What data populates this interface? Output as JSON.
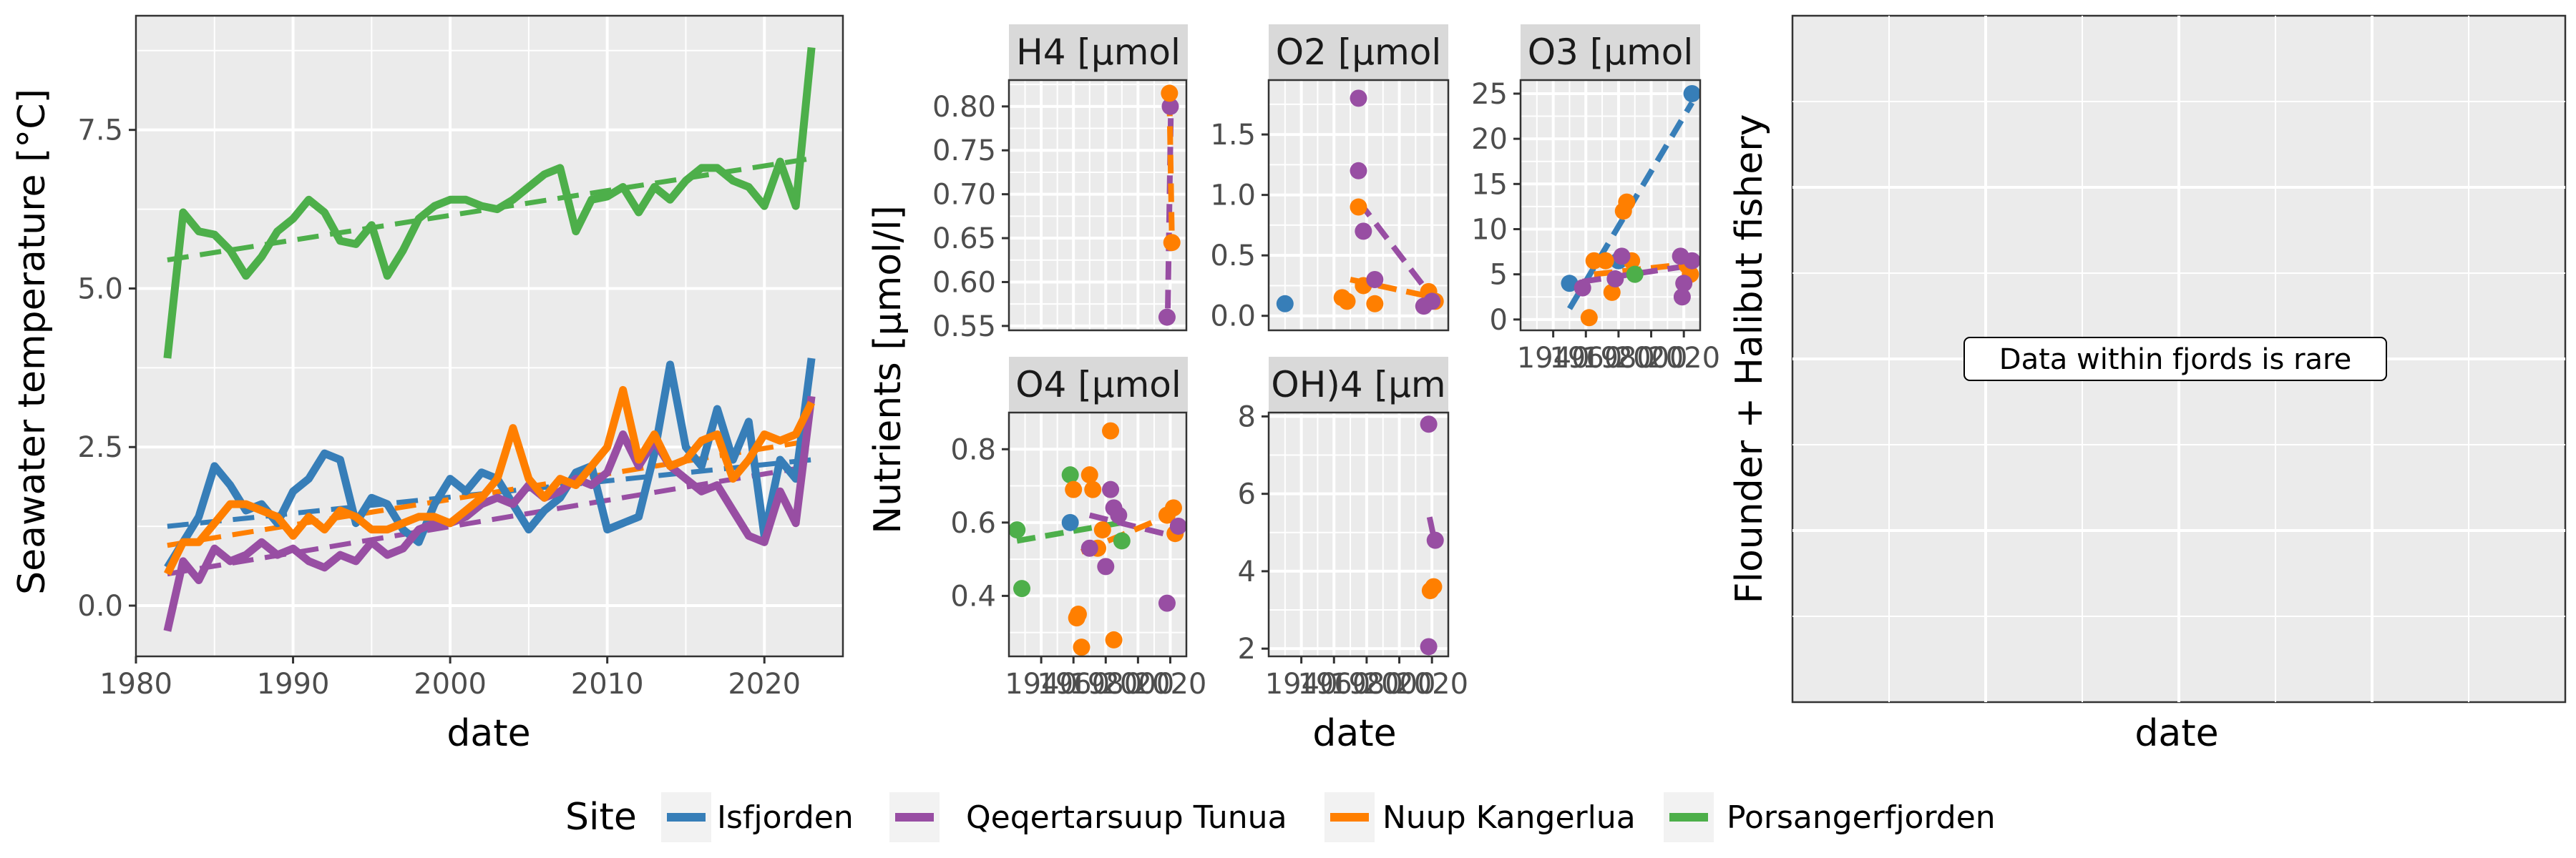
{
  "colors": {
    "Isfjorden": "#377EB8",
    "Qeqertarsuup Tunua": "#984EA3",
    "Nuup Kangerlua": "#FF7F00",
    "Porsangerfjorden": "#4DAF4A"
  },
  "legend": {
    "title": "Site",
    "items": [
      "Isfjorden",
      "Qeqertarsuup Tunua",
      "Nuup Kangerlua",
      "Porsangerfjorden"
    ]
  },
  "temp_panel": {
    "ylabel": "Seawater temperature [°C]",
    "xlabel": "date",
    "xlim": [
      1980,
      2025.3
    ],
    "ylim": [
      -0.8,
      9.3
    ],
    "xticks": [
      "1980",
      "1990",
      "2000",
      "2010",
      "2020"
    ],
    "yticks": [
      "0.0",
      "2.5",
      "5.0",
      "7.5"
    ]
  },
  "nutrient_panels": {
    "ylabel": "Nutrients [µmol/l]",
    "xlabel": "date",
    "date_tick_labels": [
      "1940",
      "1960",
      "1980",
      "2000",
      "2020"
    ]
  },
  "fishery_panel": {
    "ylabel": "Flounder + Halibut fishery",
    "xlabel": "date",
    "annotation": "Data within fjords is rare"
  },
  "chart_data": [
    {
      "type": "line",
      "panel": "temperature",
      "xlabel": "date",
      "ylabel": "Seawater temperature [°C]",
      "xlim": [
        1980,
        2025
      ],
      "ylim": [
        -0.8,
        9.3
      ],
      "grid": true,
      "series": [
        {
          "name": "Porsangerfjorden",
          "x": [
            1982,
            1983,
            1984,
            1985,
            1986,
            1987,
            1988,
            1989,
            1990,
            1991,
            1992,
            1993,
            1994,
            1995,
            1996,
            1997,
            1998,
            1999,
            2000,
            2001,
            2002,
            2003,
            2004,
            2005,
            2006,
            2007,
            2008,
            2009,
            2010,
            2011,
            2012,
            2013,
            2014,
            2015,
            2016,
            2017,
            2018,
            2019,
            2020,
            2021,
            2022,
            2023
          ],
          "y": [
            3.9,
            6.2,
            5.9,
            5.85,
            5.6,
            5.2,
            5.5,
            5.9,
            6.1,
            6.4,
            6.2,
            5.75,
            5.7,
            6.0,
            5.2,
            5.6,
            6.1,
            6.3,
            6.4,
            6.4,
            6.3,
            6.25,
            6.4,
            6.6,
            6.8,
            6.9,
            5.9,
            6.4,
            6.45,
            6.6,
            6.2,
            6.6,
            6.4,
            6.7,
            6.9,
            6.9,
            6.7,
            6.6,
            6.3,
            7.0,
            6.3,
            8.8
          ],
          "trend": [
            [
              1982,
              5.45
            ],
            [
              2023,
              7.05
            ]
          ]
        },
        {
          "name": "Isfjorden",
          "x": [
            1982,
            1983,
            1984,
            1985,
            1986,
            1987,
            1988,
            1989,
            1990,
            1991,
            1992,
            1993,
            1994,
            1995,
            1996,
            1997,
            1998,
            1999,
            2000,
            2001,
            2002,
            2003,
            2004,
            2005,
            2006,
            2007,
            2008,
            2009,
            2010,
            2011,
            2012,
            2013,
            2014,
            2015,
            2016,
            2017,
            2018,
            2019,
            2020,
            2021,
            2022,
            2023
          ],
          "y": [
            0.6,
            1.0,
            1.4,
            2.2,
            1.9,
            1.5,
            1.6,
            1.3,
            1.8,
            2.0,
            2.4,
            2.3,
            1.3,
            1.7,
            1.6,
            1.2,
            1.0,
            1.6,
            2.0,
            1.8,
            2.1,
            2.0,
            1.6,
            1.2,
            1.5,
            1.7,
            2.1,
            2.2,
            1.2,
            1.3,
            1.4,
            2.4,
            3.8,
            2.5,
            2.2,
            3.1,
            2.3,
            2.9,
            1.1,
            2.3,
            2.0,
            3.9
          ],
          "trend": [
            [
              1982,
              1.25
            ],
            [
              2023,
              2.3
            ]
          ]
        },
        {
          "name": "Qeqertarsuup Tunua",
          "x": [
            1982,
            1983,
            1984,
            1985,
            1986,
            1987,
            1988,
            1989,
            1990,
            1991,
            1992,
            1993,
            1994,
            1995,
            1996,
            1997,
            1998,
            1999,
            2000,
            2001,
            2002,
            2003,
            2004,
            2005,
            2006,
            2007,
            2008,
            2009,
            2010,
            2011,
            2012,
            2013,
            2014,
            2015,
            2016,
            2017,
            2018,
            2019,
            2020,
            2021,
            2022,
            2023
          ],
          "y": [
            -0.4,
            0.7,
            0.4,
            0.9,
            0.7,
            0.8,
            1.0,
            0.8,
            0.9,
            0.7,
            0.6,
            0.8,
            0.7,
            1.0,
            0.8,
            0.9,
            1.2,
            1.3,
            1.3,
            1.4,
            1.6,
            1.7,
            1.6,
            1.9,
            1.7,
            1.8,
            2.0,
            1.9,
            2.1,
            2.7,
            2.2,
            2.6,
            2.2,
            2.0,
            1.8,
            1.9,
            1.5,
            1.1,
            1.0,
            1.8,
            1.3,
            3.3
          ],
          "trend": [
            [
              1982,
              0.5
            ],
            [
              2023,
              2.2
            ]
          ]
        },
        {
          "name": "Nuup Kangerlua",
          "x": [
            1982,
            1983,
            1984,
            1985,
            1986,
            1987,
            1988,
            1989,
            1990,
            1991,
            1992,
            1993,
            1994,
            1995,
            1996,
            1997,
            1998,
            1999,
            2000,
            2001,
            2002,
            2003,
            2004,
            2005,
            2006,
            2007,
            2008,
            2009,
            2010,
            2011,
            2012,
            2013,
            2014,
            2015,
            2016,
            2017,
            2018,
            2019,
            2020,
            2021,
            2022,
            2023
          ],
          "y": [
            0.5,
            1.0,
            1.0,
            1.3,
            1.6,
            1.6,
            1.5,
            1.4,
            1.1,
            1.4,
            1.2,
            1.5,
            1.4,
            1.2,
            1.2,
            1.3,
            1.4,
            1.4,
            1.3,
            1.5,
            1.7,
            2.0,
            2.8,
            2.0,
            1.7,
            2.0,
            1.9,
            2.2,
            2.5,
            3.4,
            2.3,
            2.7,
            2.2,
            2.3,
            2.6,
            2.7,
            2.0,
            2.3,
            2.7,
            2.6,
            2.7,
            3.2
          ],
          "trend": [
            [
              1982,
              0.95
            ],
            [
              2023,
              2.6
            ]
          ]
        }
      ]
    },
    {
      "type": "scatter",
      "panel": "NH4",
      "strip": "H4 [µmol",
      "xlim": [
        1920,
        2030
      ],
      "ylim": [
        0.545,
        0.83
      ],
      "yticks": [
        0.55,
        0.6,
        0.65,
        0.7,
        0.75,
        0.8
      ],
      "points": [
        {
          "site": "Qeqertarsuup Tunua",
          "x": 2018,
          "y": 0.56
        },
        {
          "site": "Qeqertarsuup Tunua",
          "x": 2020,
          "y": 0.8
        },
        {
          "site": "Nuup Kangerlua",
          "x": 2019.5,
          "y": 0.815
        },
        {
          "site": "Nuup Kangerlua",
          "x": 2021,
          "y": 0.645
        }
      ],
      "trends": [
        {
          "site": "Qeqertarsuup Tunua",
          "from": [
            2018.5,
            0.57
          ],
          "to": [
            2020.5,
            0.81
          ]
        },
        {
          "site": "Nuup Kangerlua",
          "from": [
            2019.5,
            0.81
          ],
          "to": [
            2021,
            0.65
          ]
        }
      ]
    },
    {
      "type": "scatter",
      "panel": "NO2",
      "strip": "O2 [µmol",
      "xlim": [
        1920,
        2030
      ],
      "ylim": [
        -0.12,
        1.95
      ],
      "yticks": [
        0.0,
        0.5,
        1.0,
        1.5
      ],
      "points": [
        {
          "site": "Isfjorden",
          "x": 1930,
          "y": 0.1
        },
        {
          "site": "Nuup Kangerlua",
          "x": 1965,
          "y": 0.15
        },
        {
          "site": "Nuup Kangerlua",
          "x": 1968,
          "y": 0.12
        },
        {
          "site": "Nuup Kangerlua",
          "x": 1975,
          "y": 0.9
        },
        {
          "site": "Nuup Kangerlua",
          "x": 1978,
          "y": 0.25
        },
        {
          "site": "Nuup Kangerlua",
          "x": 1985,
          "y": 0.1
        },
        {
          "site": "Nuup Kangerlua",
          "x": 2018,
          "y": 0.2
        },
        {
          "site": "Nuup Kangerlua",
          "x": 2022,
          "y": 0.12
        },
        {
          "site": "Qeqertarsuup Tunua",
          "x": 1975,
          "y": 1.8
        },
        {
          "site": "Qeqertarsuup Tunua",
          "x": 1975,
          "y": 1.2
        },
        {
          "site": "Qeqertarsuup Tunua",
          "x": 1978,
          "y": 0.7
        },
        {
          "site": "Qeqertarsuup Tunua",
          "x": 1985,
          "y": 0.3
        },
        {
          "site": "Qeqertarsuup Tunua",
          "x": 2015,
          "y": 0.08
        },
        {
          "site": "Qeqertarsuup Tunua",
          "x": 2020,
          "y": 0.12
        }
      ],
      "trends": [
        {
          "site": "Qeqertarsuup Tunua",
          "from": [
            1975,
            0.95
          ],
          "to": [
            2022,
            0.12
          ]
        },
        {
          "site": "Nuup Kangerlua",
          "from": [
            1970,
            0.3
          ],
          "to": [
            2022,
            0.15
          ]
        }
      ]
    },
    {
      "type": "scatter",
      "panel": "NO3",
      "strip": "O3 [µmol",
      "xlim": [
        1920,
        2030
      ],
      "ylim": [
        -1.2,
        26.5
      ],
      "yticks": [
        0,
        5,
        10,
        15,
        20,
        25
      ],
      "points": [
        {
          "site": "Isfjorden",
          "x": 1950,
          "y": 4
        },
        {
          "site": "Isfjorden",
          "x": 2025,
          "y": 25
        },
        {
          "site": "Isfjorden",
          "x": 1980,
          "y": 6.5
        },
        {
          "site": "Nuup Kangerlua",
          "x": 1962,
          "y": 0.2
        },
        {
          "site": "Nuup Kangerlua",
          "x": 1965,
          "y": 6.5
        },
        {
          "site": "Nuup Kangerlua",
          "x": 1972,
          "y": 6.5
        },
        {
          "site": "Nuup Kangerlua",
          "x": 1976,
          "y": 3.0
        },
        {
          "site": "Nuup Kangerlua",
          "x": 1983,
          "y": 12
        },
        {
          "site": "Nuup Kangerlua",
          "x": 1985,
          "y": 13
        },
        {
          "site": "Nuup Kangerlua",
          "x": 1988,
          "y": 6.5
        },
        {
          "site": "Nuup Kangerlua",
          "x": 2022,
          "y": 6.0
        },
        {
          "site": "Nuup Kangerlua",
          "x": 2024,
          "y": 5.0
        },
        {
          "site": "Qeqertarsuup Tunua",
          "x": 1958,
          "y": 3.5
        },
        {
          "site": "Qeqertarsuup Tunua",
          "x": 1978,
          "y": 4.5
        },
        {
          "site": "Qeqertarsuup Tunua",
          "x": 1982,
          "y": 7.0
        },
        {
          "site": "Qeqertarsuup Tunua",
          "x": 2018,
          "y": 7.0
        },
        {
          "site": "Qeqertarsuup Tunua",
          "x": 2019,
          "y": 2.5
        },
        {
          "site": "Qeqertarsuup Tunua",
          "x": 2020,
          "y": 4.0
        },
        {
          "site": "Qeqertarsuup Tunua",
          "x": 2025,
          "y": 6.5
        },
        {
          "site": "Porsangerfjorden",
          "x": 1990,
          "y": 5.0
        }
      ],
      "trends": [
        {
          "site": "Isfjorden",
          "from": [
            1950,
            1.2
          ],
          "to": [
            2025,
            24
          ]
        },
        {
          "site": "Nuup Kangerlua",
          "from": [
            1965,
            5.0
          ],
          "to": [
            2025,
            6.2
          ]
        },
        {
          "site": "Qeqertarsuup Tunua",
          "from": [
            1958,
            4.2
          ],
          "to": [
            2025,
            6.0
          ]
        }
      ]
    },
    {
      "type": "scatter",
      "panel": "PO4",
      "strip": "O4 [µmol",
      "xlim": [
        1920,
        2030
      ],
      "ylim": [
        0.235,
        0.9
      ],
      "yticks": [
        0.4,
        0.6,
        0.8
      ],
      "points": [
        {
          "site": "Porsangerfjorden",
          "x": 1925,
          "y": 0.58
        },
        {
          "site": "Porsangerfjorden",
          "x": 1928,
          "y": 0.42
        },
        {
          "site": "Porsangerfjorden",
          "x": 1958,
          "y": 0.73
        },
        {
          "site": "Porsangerfjorden",
          "x": 1990,
          "y": 0.55
        },
        {
          "site": "Isfjorden",
          "x": 1958,
          "y": 0.6
        },
        {
          "site": "Nuup Kangerlua",
          "x": 1960,
          "y": 0.69
        },
        {
          "site": "Nuup Kangerlua",
          "x": 1962,
          "y": 0.34
        },
        {
          "site": "Nuup Kangerlua",
          "x": 1963,
          "y": 0.35
        },
        {
          "site": "Nuup Kangerlua",
          "x": 1965,
          "y": 0.26
        },
        {
          "site": "Nuup Kangerlua",
          "x": 1970,
          "y": 0.73
        },
        {
          "site": "Nuup Kangerlua",
          "x": 1972,
          "y": 0.69
        },
        {
          "site": "Nuup Kangerlua",
          "x": 1975,
          "y": 0.53
        },
        {
          "site": "Nuup Kangerlua",
          "x": 1978,
          "y": 0.58
        },
        {
          "site": "Nuup Kangerlua",
          "x": 1983,
          "y": 0.85
        },
        {
          "site": "Nuup Kangerlua",
          "x": 1985,
          "y": 0.28
        },
        {
          "site": "Nuup Kangerlua",
          "x": 2018,
          "y": 0.62
        },
        {
          "site": "Nuup Kangerlua",
          "x": 2022,
          "y": 0.64
        },
        {
          "site": "Nuup Kangerlua",
          "x": 2023,
          "y": 0.57
        },
        {
          "site": "Qeqertarsuup Tunua",
          "x": 1970,
          "y": 0.53
        },
        {
          "site": "Qeqertarsuup Tunua",
          "x": 1980,
          "y": 0.48
        },
        {
          "site": "Qeqertarsuup Tunua",
          "x": 1983,
          "y": 0.69
        },
        {
          "site": "Qeqertarsuup Tunua",
          "x": 1985,
          "y": 0.64
        },
        {
          "site": "Qeqertarsuup Tunua",
          "x": 1988,
          "y": 0.62
        },
        {
          "site": "Qeqertarsuup Tunua",
          "x": 2018,
          "y": 0.38
        },
        {
          "site": "Qeqertarsuup Tunua",
          "x": 2025,
          "y": 0.59
        }
      ],
      "trends": [
        {
          "site": "Porsangerfjorden",
          "from": [
            1925,
            0.55
          ],
          "to": [
            1990,
            0.6
          ]
        },
        {
          "site": "Qeqertarsuup Tunua",
          "from": [
            1970,
            0.62
          ],
          "to": [
            2025,
            0.56
          ]
        },
        {
          "site": "Nuup Kangerlua",
          "from": [
            1965,
            0.52
          ],
          "to": [
            2025,
            0.63
          ]
        }
      ]
    },
    {
      "type": "scatter",
      "panel": "Si(OH)4",
      "strip": "OH)4 [µm",
      "xlim": [
        1920,
        2030
      ],
      "ylim": [
        1.8,
        8.1
      ],
      "yticks": [
        2,
        4,
        6,
        8
      ],
      "points": [
        {
          "site": "Qeqertarsuup Tunua",
          "x": 2018,
          "y": 7.8
        },
        {
          "site": "Qeqertarsuup Tunua",
          "x": 2018,
          "y": 2.05
        },
        {
          "site": "Qeqertarsuup Tunua",
          "x": 2022,
          "y": 4.8
        },
        {
          "site": "Nuup Kangerlua",
          "x": 2019,
          "y": 3.5
        },
        {
          "site": "Nuup Kangerlua",
          "x": 2021,
          "y": 3.6
        }
      ],
      "trends": [
        {
          "site": "Qeqertarsuup Tunua",
          "from": [
            2018.5,
            5.4
          ],
          "to": [
            2021.5,
            4.8
          ]
        },
        {
          "site": "Nuup Kangerlua",
          "from": [
            2019,
            3.5
          ],
          "to": [
            2021,
            3.6
          ]
        }
      ]
    }
  ]
}
